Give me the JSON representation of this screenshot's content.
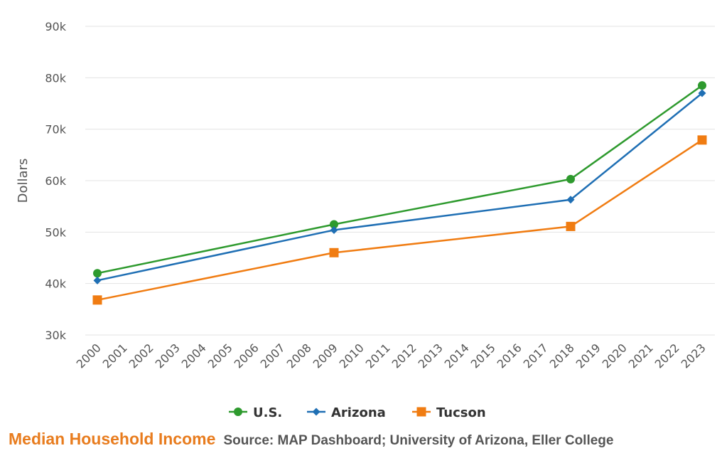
{
  "chart_data": {
    "type": "line",
    "x": [
      "2000",
      "2001",
      "2002",
      "2003",
      "2004",
      "2005",
      "2006",
      "2007",
      "2008",
      "2009",
      "2010",
      "2011",
      "2012",
      "2013",
      "2014",
      "2015",
      "2016",
      "2017",
      "2018",
      "2019",
      "2020",
      "2021",
      "2022",
      "2023"
    ],
    "ylabel": "Dollars",
    "ylim": [
      30000,
      90000
    ],
    "yticks": [
      {
        "value": 30000,
        "label": "30k"
      },
      {
        "value": 40000,
        "label": "40k"
      },
      {
        "value": 50000,
        "label": "50k"
      },
      {
        "value": 60000,
        "label": "60k"
      },
      {
        "value": 70000,
        "label": "70k"
      },
      {
        "value": 80000,
        "label": "80k"
      },
      {
        "value": 90000,
        "label": "90k"
      }
    ],
    "grid": true,
    "legend_position": "bottom",
    "series": [
      {
        "name": "U.S.",
        "color": "#2e9a2e",
        "marker": "circle",
        "points": [
          {
            "x": "2000",
            "y": 42000
          },
          {
            "x": "2009",
            "y": 51500
          },
          {
            "x": "2018",
            "y": 60300
          },
          {
            "x": "2023",
            "y": 78500
          }
        ]
      },
      {
        "name": "Arizona",
        "color": "#1f6fb4",
        "marker": "diamond",
        "points": [
          {
            "x": "2000",
            "y": 40600
          },
          {
            "x": "2009",
            "y": 50400
          },
          {
            "x": "2018",
            "y": 56300
          },
          {
            "x": "2023",
            "y": 77000
          }
        ]
      },
      {
        "name": "Tucson",
        "color": "#f07c12",
        "marker": "square",
        "points": [
          {
            "x": "2000",
            "y": 36800
          },
          {
            "x": "2009",
            "y": 46000
          },
          {
            "x": "2018",
            "y": 51100
          },
          {
            "x": "2023",
            "y": 67900
          }
        ]
      }
    ]
  },
  "caption": {
    "title": "Median Household Income",
    "source": "Source: MAP Dashboard; University of Arizona, Eller College"
  }
}
